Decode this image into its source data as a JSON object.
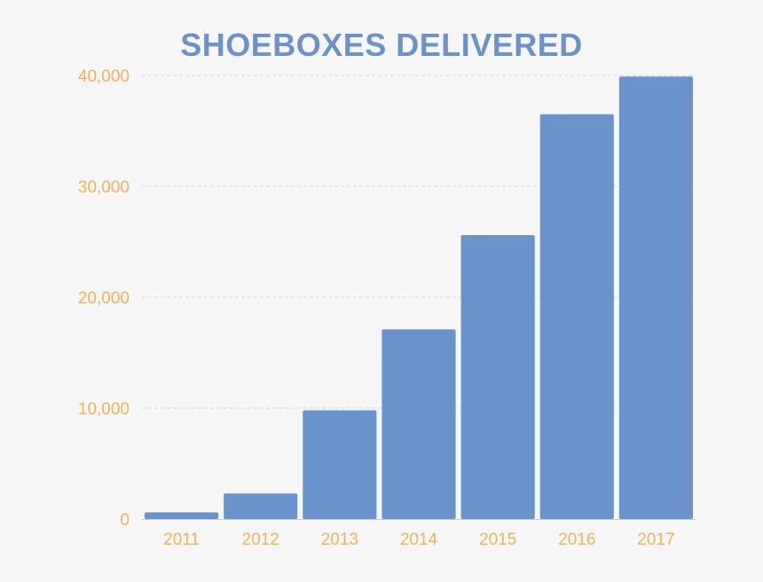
{
  "colors": {
    "background": "#f6f6f6",
    "bar": "#6a93cb",
    "title": "#6a93cb",
    "tick_label": "#f0b357",
    "grid": "#d6d6d6",
    "axis": "#c9c9c9"
  },
  "chart_data": {
    "type": "bar",
    "title": "SHOEBOXES DELIVERED",
    "xlabel": "",
    "ylabel": "",
    "categories": [
      "2011",
      "2012",
      "2013",
      "2014",
      "2015",
      "2016",
      "2017"
    ],
    "values": [
      600,
      2300,
      9800,
      17100,
      25600,
      36500,
      39900
    ],
    "ylim": [
      0,
      40000
    ],
    "yticks": [
      {
        "value": 0,
        "label": "0"
      },
      {
        "value": 10000,
        "label": "10,000"
      },
      {
        "value": 20000,
        "label": "20,000"
      },
      {
        "value": 30000,
        "label": "30,000"
      },
      {
        "value": 40000,
        "label": "40,000"
      }
    ],
    "grid": true,
    "legend": "none"
  }
}
